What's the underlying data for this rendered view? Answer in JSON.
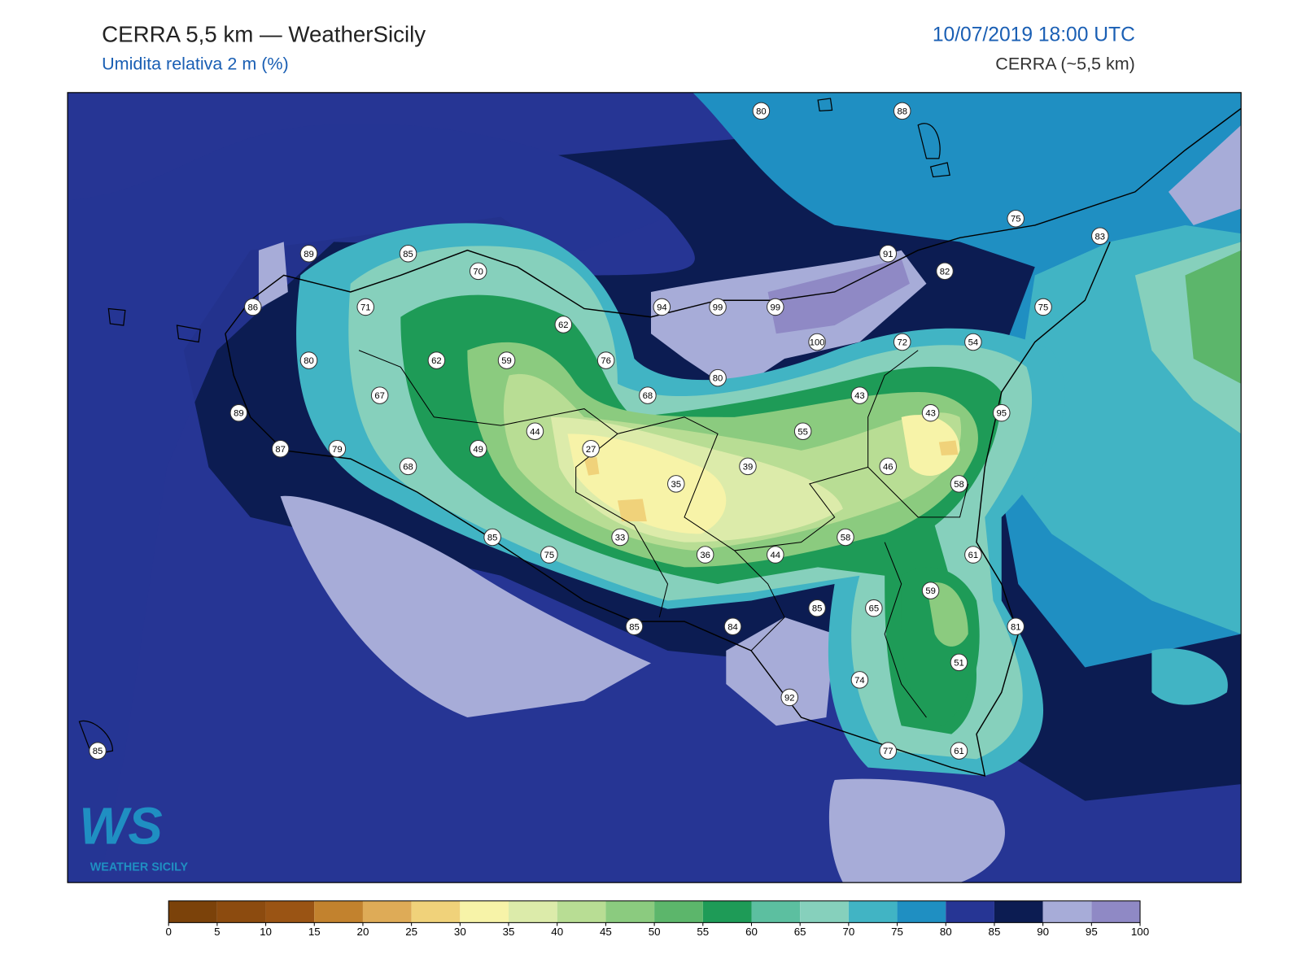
{
  "header": {
    "title": "CERRA 5,5 km — WeatherSicily",
    "subtitle": "Umidita relativa 2 m (%)",
    "datetime": "10/07/2019 18:00 UTC",
    "model": "CERRA (~5,5 km)"
  },
  "logo": {
    "mark": "WS",
    "text": "WEATHER SICILY"
  },
  "stations": [
    80,
    88,
    75,
    83,
    89,
    85,
    91,
    82,
    70,
    86,
    71,
    94,
    99,
    99,
    75,
    62,
    100,
    72,
    54,
    80,
    62,
    59,
    76,
    80,
    67,
    68,
    43,
    43,
    95,
    89,
    44,
    55,
    87,
    79,
    49,
    27,
    68,
    39,
    46,
    35,
    58,
    33,
    85,
    58,
    75,
    36,
    44,
    61,
    59,
    85,
    65,
    85,
    84,
    81,
    51,
    74,
    92,
    85,
    77,
    61
  ],
  "colorbar": {
    "ticks": [
      0,
      5,
      10,
      15,
      20,
      25,
      30,
      35,
      40,
      45,
      50,
      55,
      60,
      65,
      70,
      75,
      80,
      85,
      90,
      95,
      100
    ],
    "colors": [
      "#7b420a",
      "#8c4b0f",
      "#9a5414",
      "#c2822e",
      "#deab57",
      "#f0d27a",
      "#f7f3a8",
      "#dcebaa",
      "#b8dd94",
      "#8bcb7f",
      "#5cb66b",
      "#1e9b57",
      "#5cbfa0",
      "#86d0bc",
      "#41b4c4",
      "#1f8fc2",
      "#263594",
      "#0c1c52",
      "#a7acd8",
      "#8f89c5"
    ]
  }
}
